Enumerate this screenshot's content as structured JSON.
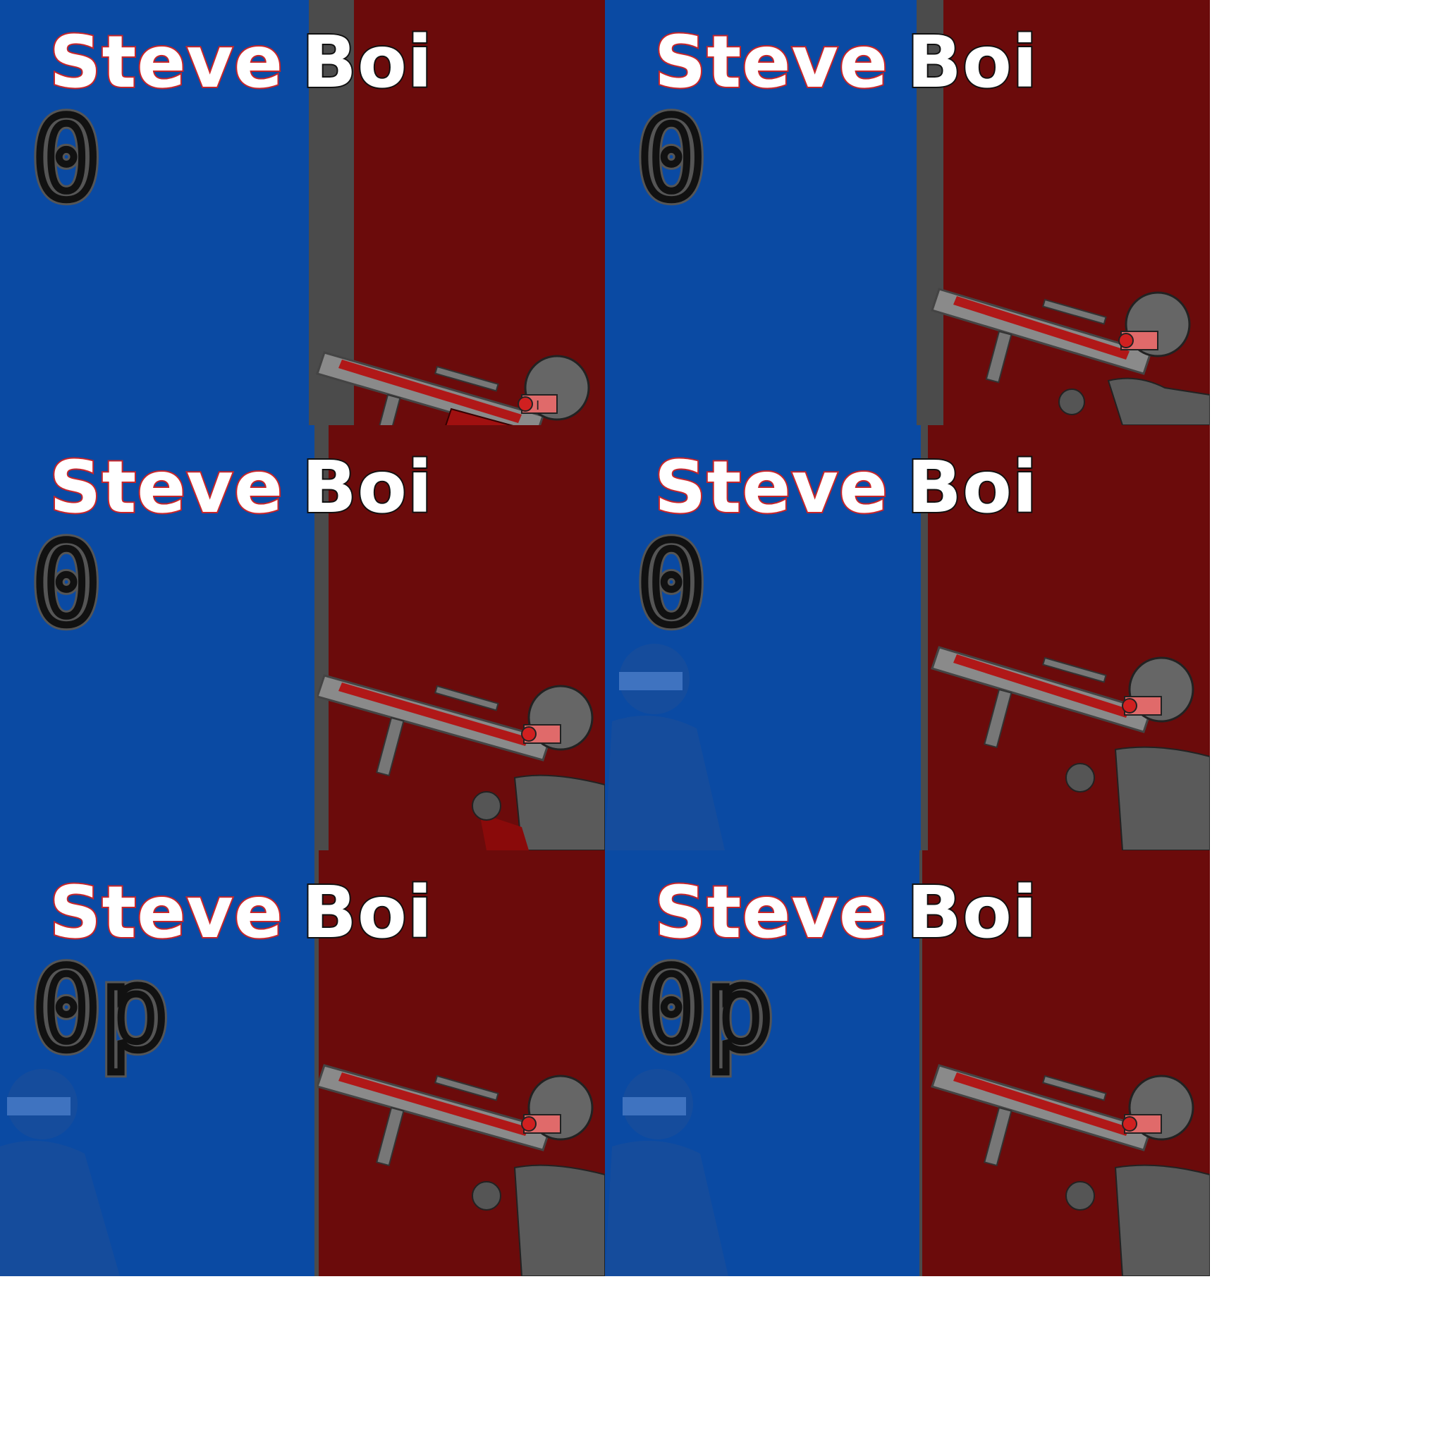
{
  "colors": {
    "blue_team": "#0a4aa3",
    "red_team": "#6b0b0b",
    "divider": "#4b4b4b",
    "title_outline": "#c8262a"
  },
  "frames": [
    {
      "title_first": "Steve",
      "title_second": "Boi",
      "score": "0",
      "red_soldier": true,
      "blue_ghost": false
    },
    {
      "title_first": "Steve",
      "title_second": "Boi",
      "score": "0",
      "red_soldier": true,
      "blue_ghost": false
    },
    {
      "title_first": "Steve",
      "title_second": "Boi",
      "score": "0",
      "red_soldier": true,
      "blue_ghost": false
    },
    {
      "title_first": "Steve",
      "title_second": "Boi",
      "score": "0",
      "red_soldier": true,
      "blue_ghost": true
    },
    {
      "title_first": "Steve",
      "title_second": "Boi",
      "score": "0p",
      "red_soldier": true,
      "blue_ghost": true
    },
    {
      "title_first": "Steve",
      "title_second": "Boi",
      "score": "0p",
      "red_soldier": true,
      "blue_ghost": true
    }
  ],
  "icons": {
    "red_soldier": "rocket-soldier-icon",
    "blue_ghost": "blue-soldier-silhouette-icon"
  }
}
